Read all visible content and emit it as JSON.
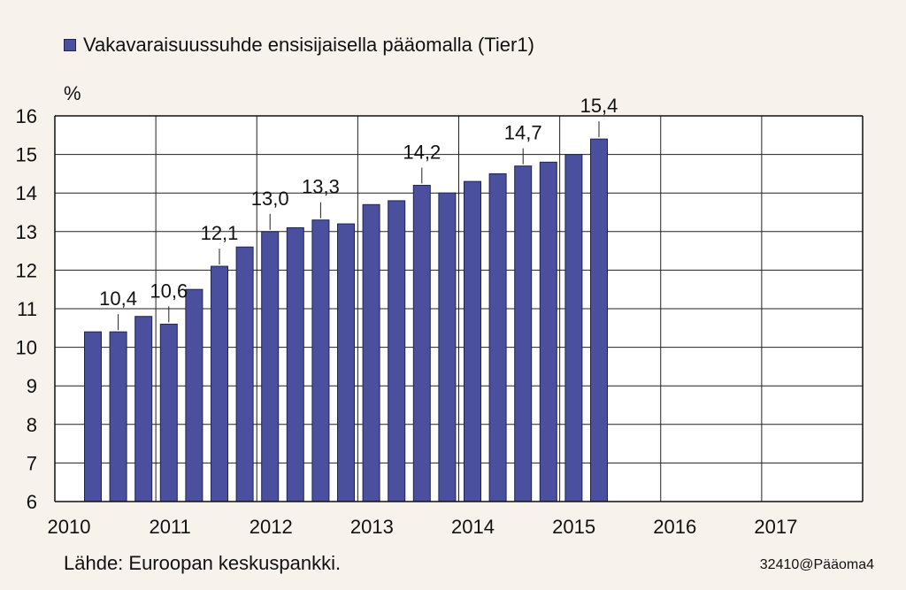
{
  "chart_data": {
    "type": "bar",
    "title": "",
    "legend": "Vakavaraisuussuhde ensisijaisella pääomalla (Tier1)",
    "y_unit": "%",
    "ylim": [
      6,
      16
    ],
    "y_ticks": [
      "6",
      "7",
      "8",
      "9",
      "10",
      "11",
      "12",
      "13",
      "14",
      "15",
      "16"
    ],
    "x_tick_labels": [
      "2010",
      "2011",
      "2012",
      "2013",
      "2014",
      "2015",
      "2016",
      "2017"
    ],
    "values": [
      10.4,
      10.4,
      10.8,
      10.6,
      11.5,
      12.1,
      12.6,
      13.0,
      13.1,
      13.3,
      13.2,
      13.7,
      13.8,
      14.2,
      14.0,
      14.3,
      14.5,
      14.7,
      14.8,
      15.0,
      15.4
    ],
    "data_labels": [
      {
        "index": 1,
        "text": "10,4"
      },
      {
        "index": 3,
        "text": "10,6"
      },
      {
        "index": 5,
        "text": "12,1"
      },
      {
        "index": 7,
        "text": "13,0"
      },
      {
        "index": 9,
        "text": "13,3"
      },
      {
        "index": 13,
        "text": "14,2"
      },
      {
        "index": 17,
        "text": "14,7"
      },
      {
        "index": 20,
        "text": "15,4"
      }
    ],
    "grid": true,
    "bar_color": "#4a4f9e",
    "bar_border": "#1f2455"
  },
  "footer": {
    "source": "Lähde: Euroopan keskuspankki.",
    "code": "32410@Pääoma4"
  }
}
